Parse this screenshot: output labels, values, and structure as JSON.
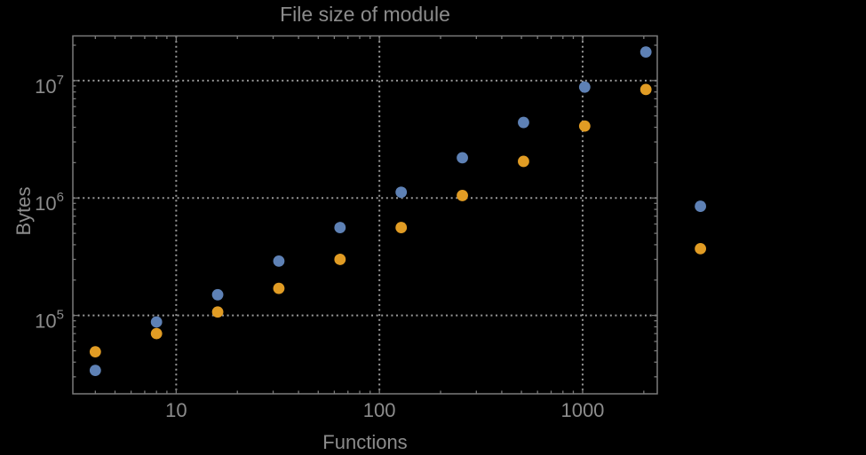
{
  "chart": {
    "title": "File size of module",
    "xlabel": "Functions",
    "ylabel": "Bytes"
  },
  "chart_data": {
    "type": "scatter",
    "title": "File size of module",
    "xlabel": "Functions",
    "ylabel": "Bytes",
    "x_scale": "log",
    "y_scale": "log",
    "x_range": [
      3.1,
      2330
    ],
    "y_range": [
      21500,
      24000000
    ],
    "x_ticks": [
      10,
      100,
      1000
    ],
    "x_tick_labels": [
      "10",
      "100",
      "1000"
    ],
    "y_ticks": [
      100000,
      1000000,
      10000000
    ],
    "y_tick_exponents": [
      5,
      6,
      7
    ],
    "y_tick_base": "10",
    "grid": {
      "style": "dotted",
      "x_at": [
        10,
        100,
        1000
      ],
      "y_at": [
        100000,
        1000000,
        10000000
      ]
    },
    "legend_position": "none",
    "frame": true,
    "marker_radius_px": 6.4,
    "colors": {
      "background": "#000000",
      "text": "#8c8c8c",
      "frame": "#7a7a7a",
      "gridline": "#989898",
      "series_blue": "#5e81b5",
      "series_orange": "#e19c24"
    },
    "series": [
      {
        "name": "series-blue",
        "color": "#5e81b5",
        "marker": "circle",
        "points": [
          [
            4,
            34000
          ],
          [
            8,
            88000
          ],
          [
            16,
            150000
          ],
          [
            32,
            290000
          ],
          [
            64,
            560000
          ],
          [
            128,
            1120000
          ],
          [
            256,
            2200000
          ],
          [
            512,
            4400000
          ],
          [
            1024,
            8800000
          ],
          [
            2048,
            17500000
          ],
          [
            3800,
            850000
          ]
        ]
      },
      {
        "name": "series-orange",
        "color": "#e19c24",
        "marker": "circle",
        "points": [
          [
            4,
            49000
          ],
          [
            8,
            70000
          ],
          [
            16,
            107000
          ],
          [
            32,
            170000
          ],
          [
            64,
            300000
          ],
          [
            128,
            560000
          ],
          [
            256,
            1050000
          ],
          [
            512,
            2050000
          ],
          [
            1024,
            4100000
          ],
          [
            2048,
            8400000
          ],
          [
            3800,
            370000
          ]
        ]
      }
    ]
  }
}
